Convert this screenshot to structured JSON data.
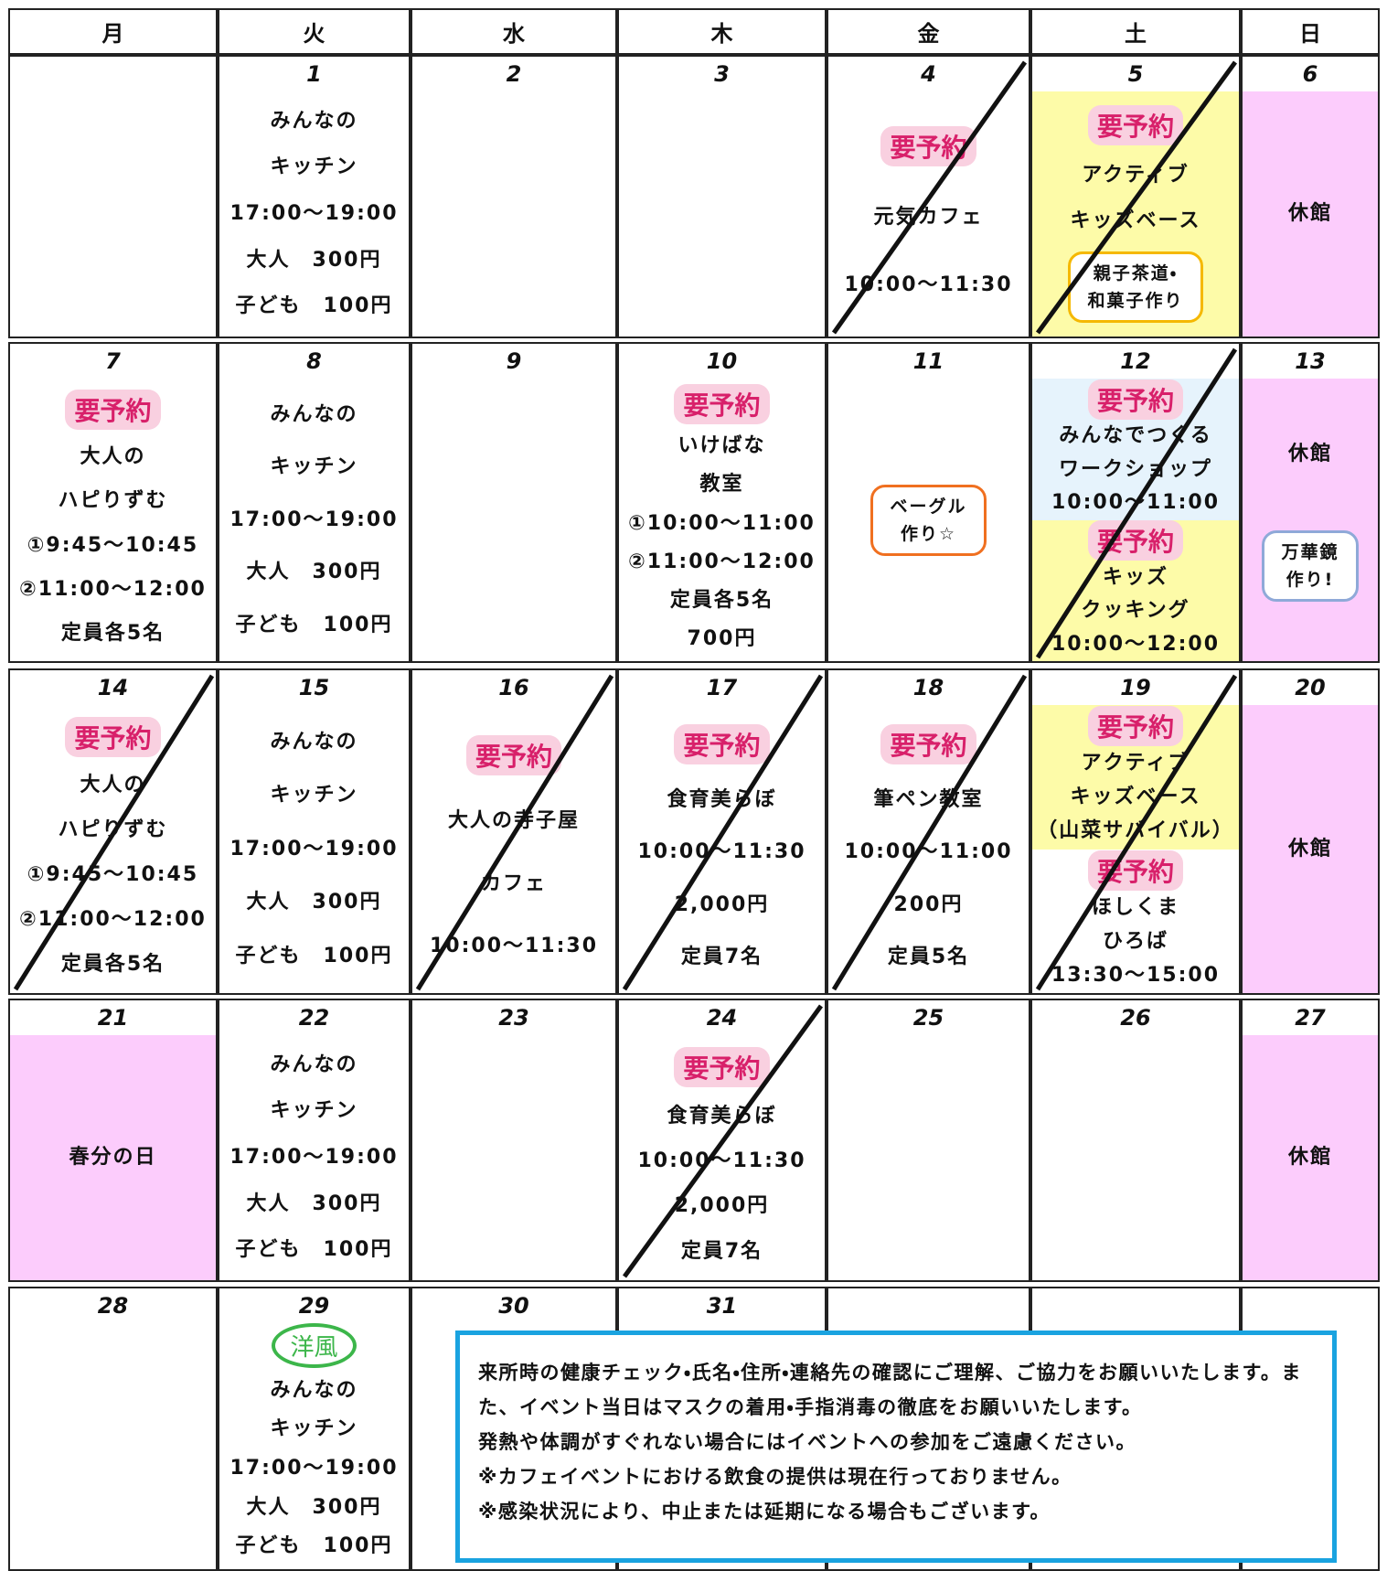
{
  "weekdays": [
    "月",
    "火",
    "水",
    "木",
    "金",
    "土",
    "日"
  ],
  "weeks": [
    {
      "days": [
        {},
        {
          "date": "1",
          "sections": [
            {
              "lines": [
                "みんなの",
                "キッチン",
                "17:00～19:00",
                "大人　300円",
                "子ども　100円"
              ]
            }
          ]
        },
        {
          "date": "2"
        },
        {
          "date": "3"
        },
        {
          "date": "4",
          "cancelled": true,
          "sections": [
            {
              "badge": "要予約",
              "lines": [
                "元気カフェ",
                "10:00～11:30"
              ]
            }
          ]
        },
        {
          "date": "5",
          "cancelled": true,
          "sections": [
            {
              "color": "#fdfba8",
              "badge": "要予約",
              "lines": [
                "アクティブ",
                "キッズベース"
              ],
              "callout": {
                "color": "#f5b800",
                "lines": [
                  "親子茶道・",
                  "和菓子作り"
                ]
              }
            }
          ]
        },
        {
          "date": "6",
          "sections": [
            {
              "color": "#fcccfc",
              "lines": [
                "休館"
              ]
            }
          ]
        }
      ]
    },
    {
      "days": [
        {
          "date": "7",
          "sections": [
            {
              "badge": "要予約",
              "lines": [
                "大人の",
                "ハピりずむ",
                "①9:45～10:45",
                "②11:00～12:00",
                "定員各5名"
              ]
            }
          ]
        },
        {
          "date": "8",
          "sections": [
            {
              "lines": [
                "みんなの",
                "キッチン",
                "17:00～19:00",
                "大人　300円",
                "子ども　100円"
              ]
            }
          ]
        },
        {
          "date": "9"
        },
        {
          "date": "10",
          "sections": [
            {
              "badge": "要予約",
              "lines": [
                "いけばな",
                "教室",
                "①10:00～11:00",
                "②11:00～12:00",
                "定員各5名",
                "700円"
              ]
            }
          ]
        },
        {
          "date": "11",
          "sections": [
            {
              "lines": [],
              "callout": {
                "color": "#f07020",
                "lines": [
                  "ベーグル",
                  "作り☆"
                ]
              }
            }
          ]
        },
        {
          "date": "12",
          "cancelled": true,
          "sections": [
            {
              "color": "#e6f3fc",
              "badge": "要予約",
              "lines": [
                "みんなでつくる",
                "ワークショップ",
                "10:00～11:00"
              ]
            },
            {
              "color": "#fdfba8",
              "badge": "要予約",
              "lines": [
                "キッズ",
                "クッキング",
                "10:00～12:00"
              ]
            }
          ]
        },
        {
          "date": "13",
          "sections": [
            {
              "color": "#fcccfc",
              "lines": [
                "休館"
              ],
              "callout": {
                "color": "#8fa9d8",
                "lines": [
                  "万華鏡",
                  "作り!"
                ]
              }
            }
          ]
        }
      ]
    },
    {
      "days": [
        {
          "date": "14",
          "cancelled": true,
          "sections": [
            {
              "badge": "要予約",
              "lines": [
                "大人の",
                "ハピりずむ",
                "①9:45～10:45",
                "②11:00～12:00",
                "定員各5名"
              ]
            }
          ]
        },
        {
          "date": "15",
          "sections": [
            {
              "lines": [
                "みんなの",
                "キッチン",
                "17:00～19:00",
                "大人　300円",
                "子ども　100円"
              ]
            }
          ]
        },
        {
          "date": "16",
          "cancelled": true,
          "sections": [
            {
              "badge": "要予約",
              "lines": [
                "大人の寺子屋",
                "カフェ",
                "10:00～11:30"
              ]
            }
          ]
        },
        {
          "date": "17",
          "cancelled": true,
          "sections": [
            {
              "badge": "要予約",
              "lines": [
                "食育美らぼ",
                "10:00～11:30",
                "2,000円",
                "定員7名"
              ]
            }
          ]
        },
        {
          "date": "18",
          "cancelled": true,
          "sections": [
            {
              "badge": "要予約",
              "lines": [
                "筆ペン教室",
                "10:00～11:00",
                "200円",
                "定員5名"
              ]
            }
          ]
        },
        {
          "date": "19",
          "cancelled": true,
          "sections": [
            {
              "color": "#fdfba8",
              "badge": "要予約",
              "lines": [
                "アクティブ",
                "キッズベース",
                "（山菜サバイバル）"
              ]
            },
            {
              "badge": "要予約",
              "lines": [
                "ほしくま",
                "ひろば",
                "13:30～15:00"
              ]
            }
          ]
        },
        {
          "date": "20",
          "sections": [
            {
              "color": "#fcccfc",
              "lines": [
                "休館"
              ]
            }
          ]
        }
      ]
    },
    {
      "days": [
        {
          "date": "21",
          "sections": [
            {
              "color": "#fcccfc",
              "lines": [
                "春分の日"
              ]
            }
          ]
        },
        {
          "date": "22",
          "sections": [
            {
              "lines": [
                "みんなの",
                "キッチン",
                "17:00～19:00",
                "大人　300円",
                "子ども　100円"
              ]
            }
          ]
        },
        {
          "date": "23"
        },
        {
          "date": "24",
          "cancelled": true,
          "sections": [
            {
              "badge": "要予約",
              "lines": [
                "食育美らぼ",
                "10:00～11:30",
                "2,000円",
                "定員7名"
              ]
            }
          ]
        },
        {
          "date": "25"
        },
        {
          "date": "26"
        },
        {
          "date": "27",
          "sections": [
            {
              "color": "#fcccfc",
              "lines": [
                "休館"
              ]
            }
          ]
        }
      ]
    },
    {
      "days": [
        {
          "date": "28"
        },
        {
          "date": "29",
          "tag": "洋風",
          "sections": [
            {
              "lines": [
                "みんなの",
                "キッチン",
                "17:00～19:00",
                "大人　300円",
                "子ども　100円"
              ]
            }
          ]
        },
        {
          "date": "30"
        },
        {
          "date": "31"
        },
        {},
        {},
        {}
      ]
    }
  ],
  "notice": {
    "lines": [
      "来所時の健康チェック・氏名・住所・連絡先の確認にご理解、ご協力をお願いいたします。また、イベント当日はマスクの着用・手指消毒の徹底をお願いいたします。",
      "発熱や体調がすぐれない場合にはイベントへの参加をご遠慮ください。",
      "※カフェイベントにおける飲食の提供は現在行っておりません。",
      "※感染状況により、中止または延期になる場合もございます。"
    ]
  }
}
